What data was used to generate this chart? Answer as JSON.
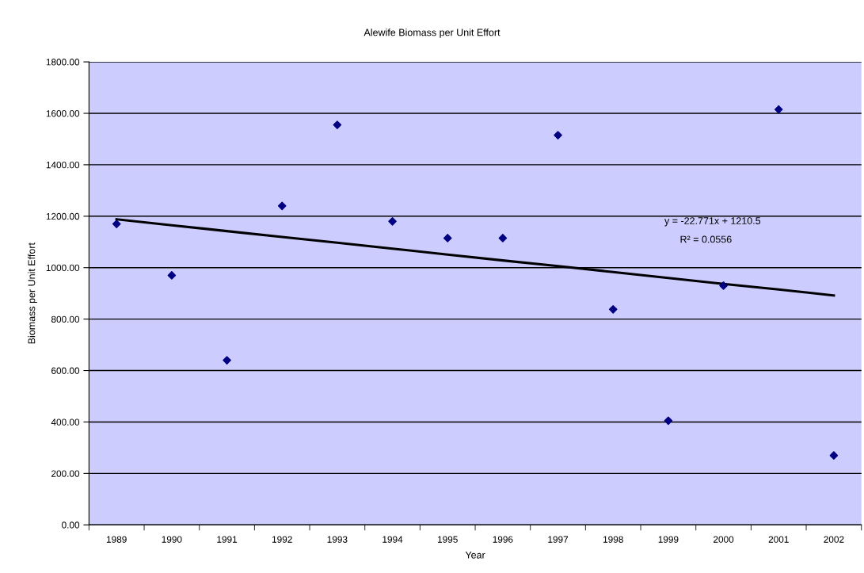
{
  "chart_data": {
    "type": "scatter",
    "title": "Alewife Biomass per Unit Effort",
    "xlabel": "Year",
    "ylabel": "Biomass per Unit Effort",
    "categories": [
      "1989",
      "1990",
      "1991",
      "1992",
      "1993",
      "1994",
      "1995",
      "1996",
      "1997",
      "1998",
      "1999",
      "2000",
      "2001",
      "2002"
    ],
    "series": [
      {
        "color": "#000080",
        "marker": "diamond",
        "values": [
          1170,
          970,
          640,
          1240,
          1555,
          1180,
          1115,
          1115,
          1515,
          838,
          405,
          930,
          1615,
          270
        ]
      },
      {
        "type": "line",
        "color": "#000000",
        "line_style": "solid",
        "marker": "none",
        "values": [
          1188,
          1165,
          1142,
          1119,
          1097,
          1074,
          1051,
          1028,
          1006,
          983,
          960,
          937,
          915,
          892
        ]
      }
    ],
    "ylim": [
      0,
      1800
    ],
    "yticks": [
      {
        "value": 0,
        "label": "0.00"
      },
      {
        "value": 200,
        "label": "200.00"
      },
      {
        "value": 400,
        "label": "400.00"
      },
      {
        "value": 600,
        "label": "600.00"
      },
      {
        "value": 800,
        "label": "800.00"
      },
      {
        "value": 1000,
        "label": "1000.00"
      },
      {
        "value": 1200,
        "label": "1200.00"
      },
      {
        "value": 1400,
        "label": "1400.00"
      },
      {
        "value": 1600,
        "label": "1600.00"
      },
      {
        "value": 1800,
        "label": "1800.00"
      }
    ],
    "grid": "y",
    "legend": false,
    "annotations": [
      "y = -22.771x + 1210.5",
      "R² = 0.0556"
    ]
  }
}
